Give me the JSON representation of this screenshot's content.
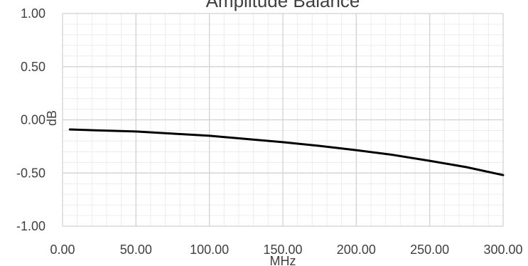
{
  "chart_data": {
    "type": "line",
    "title": "Amplitude Balance",
    "xlabel": "MHz",
    "ylabel": "dB",
    "xlim": [
      0,
      300
    ],
    "ylim": [
      -1,
      1
    ],
    "x_ticks": [
      "0.00",
      "50.00",
      "100.00",
      "150.00",
      "200.00",
      "250.00",
      "300.00"
    ],
    "y_ticks": [
      "1.00",
      "0.50",
      "0.00",
      "-0.50",
      "-1.00"
    ],
    "x_tick_values": [
      0,
      50,
      100,
      150,
      200,
      250,
      300
    ],
    "y_tick_values": [
      1,
      0.5,
      0,
      -0.5,
      -1
    ],
    "grid": true,
    "minor_grid": true,
    "legend": "none",
    "series": [
      {
        "color": "#000000",
        "x": [
          5,
          25,
          50,
          75,
          100,
          125,
          150,
          175,
          200,
          225,
          250,
          275,
          300
        ],
        "y": [
          -0.09,
          -0.1,
          -0.11,
          -0.13,
          -0.15,
          -0.18,
          -0.21,
          -0.245,
          -0.285,
          -0.33,
          -0.385,
          -0.445,
          -0.52
        ]
      }
    ]
  }
}
